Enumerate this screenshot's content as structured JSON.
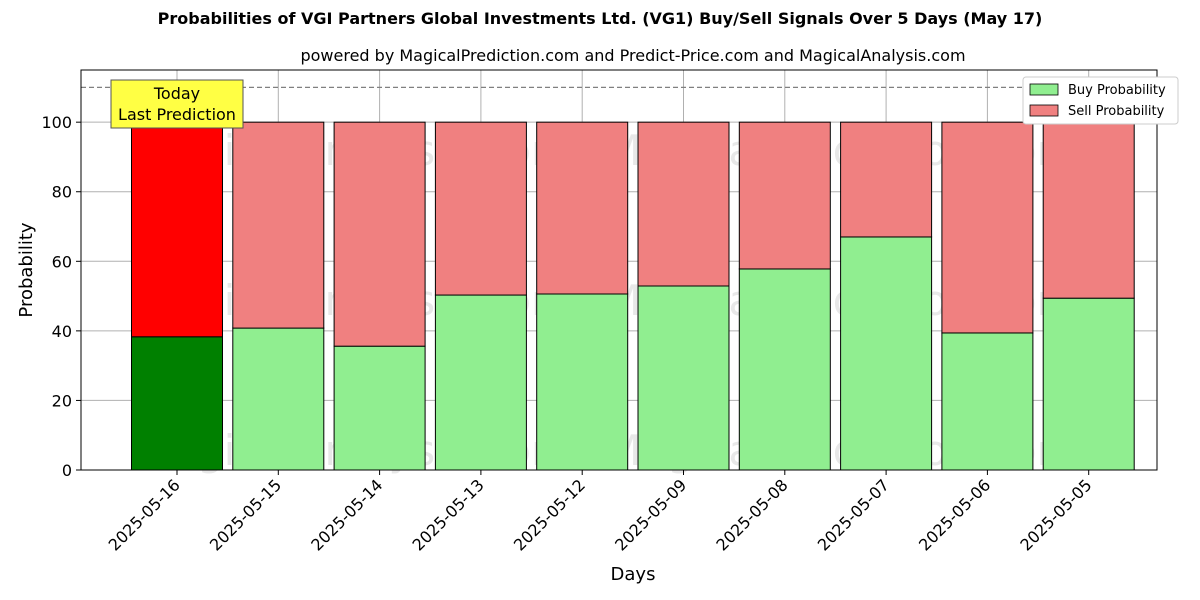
{
  "chart_data": {
    "type": "bar",
    "title": "Probabilities of VGI Partners Global Investments Ltd. (VG1) Buy/Sell Signals Over 5 Days (May 17)",
    "subtitle": "powered by MagicalPrediction.com and Predict-Price.com and MagicalAnalysis.com",
    "xlabel": "Days",
    "ylabel": "Probability",
    "ylim": [
      0,
      115
    ],
    "yticks": [
      0,
      20,
      40,
      60,
      80,
      100
    ],
    "grid": true,
    "stacked": true,
    "legend_position": "top-right",
    "categories": [
      "2025-05-16",
      "2025-05-15",
      "2025-05-14",
      "2025-05-13",
      "2025-05-12",
      "2025-05-09",
      "2025-05-08",
      "2025-05-07",
      "2025-05-06",
      "2025-05-05"
    ],
    "series": [
      {
        "name": "Buy Probability",
        "color": "#90ee90",
        "highlight_color": "#008000",
        "values": [
          38.3,
          40.8,
          35.6,
          50.3,
          50.6,
          52.9,
          57.8,
          67.0,
          39.4,
          49.4
        ]
      },
      {
        "name": "Sell Probability",
        "color": "#f08080",
        "highlight_color": "#ff0000",
        "values": [
          61.7,
          59.2,
          64.4,
          49.7,
          49.4,
          47.1,
          42.2,
          33.0,
          60.6,
          50.6
        ]
      }
    ],
    "reference_line": {
      "y": 110,
      "style": "dashed"
    },
    "annotation": {
      "lines": [
        "Today",
        "Last Prediction"
      ],
      "target_category": "2025-05-16",
      "color": "#ffff44"
    },
    "watermarks": [
      "MagicalAnalysis.com",
      "MagicalPrediction.com"
    ]
  }
}
